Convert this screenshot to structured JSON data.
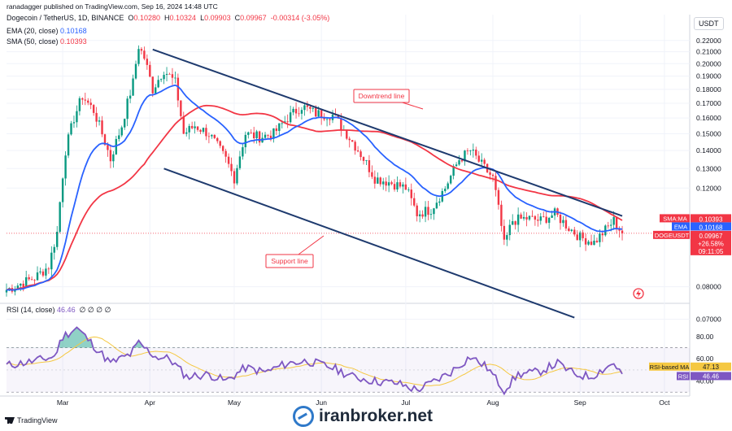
{
  "header": {
    "published": "ranadagger published on TradingView.com, Sep 16, 2024 14:48 UTC",
    "symbol": "Dogecoin / TetherUS, 1D, BINANCE",
    "ohlc": {
      "o_label": "O",
      "o": "0.10280",
      "h_label": "H",
      "h": "0.10324",
      "l_label": "L",
      "l": "0.09903",
      "c_label": "C",
      "c": "0.09967",
      "change": "-0.00314 (-3.05%)"
    },
    "ema_label": "EMA (20, close)",
    "ema_value": "0.10168",
    "sma_label": "SMA (50, close)",
    "sma_value": "0.10393",
    "rsi_label": "RSI (14, close)",
    "rsi_value": "46.46",
    "rsi_extra": "∅ ∅ ∅ ∅"
  },
  "currency": "USDT",
  "footer": {
    "tv_brand": "TradingView",
    "watermark": "iranbroker.net"
  },
  "colors": {
    "up": "#089981",
    "down": "#f23645",
    "ema": "#2962ff",
    "sma": "#f23645",
    "trend": "#1e3a6e",
    "rsi": "#7e57c2",
    "rsi_ma": "#f5c842"
  },
  "chart_data": [
    {
      "type": "candlestick",
      "ylim": [
        0.075,
        0.235
      ],
      "yscale": "log",
      "y_ticks": [
        "0.22000",
        "0.21000",
        "0.20000",
        "0.19000",
        "0.18000",
        "0.17000",
        "0.16000",
        "0.15000",
        "0.14000",
        "0.13000",
        "0.12000",
        "0.08000",
        "0.07000"
      ],
      "x_ticks": [
        "Mar",
        "Apr",
        "May",
        "Jun",
        "Jul",
        "Aug",
        "Sep",
        "Oct"
      ],
      "x_range": [
        "2024-02-10",
        "2024-10-10"
      ],
      "keypoints_close": [
        [
          "2024-02-10",
          0.079
        ],
        [
          "2024-02-20",
          0.083
        ],
        [
          "2024-02-25",
          0.087
        ],
        [
          "2024-02-28",
          0.1
        ],
        [
          "2024-03-02",
          0.14
        ],
        [
          "2024-03-05",
          0.16
        ],
        [
          "2024-03-08",
          0.175
        ],
        [
          "2024-03-12",
          0.165
        ],
        [
          "2024-03-16",
          0.145
        ],
        [
          "2024-03-18",
          0.135
        ],
        [
          "2024-03-22",
          0.155
        ],
        [
          "2024-03-26",
          0.185
        ],
        [
          "2024-03-28",
          0.215
        ],
        [
          "2024-03-30",
          0.205
        ],
        [
          "2024-04-02",
          0.18
        ],
        [
          "2024-04-06",
          0.195
        ],
        [
          "2024-04-10",
          0.185
        ],
        [
          "2024-04-13",
          0.15
        ],
        [
          "2024-04-17",
          0.155
        ],
        [
          "2024-04-22",
          0.15
        ],
        [
          "2024-04-28",
          0.135
        ],
        [
          "2024-05-01",
          0.125
        ],
        [
          "2024-05-05",
          0.15
        ],
        [
          "2024-05-10",
          0.148
        ],
        [
          "2024-05-15",
          0.15
        ],
        [
          "2024-05-20",
          0.16
        ],
        [
          "2024-05-25",
          0.168
        ],
        [
          "2024-05-30",
          0.163
        ],
        [
          "2024-06-05",
          0.162
        ],
        [
          "2024-06-10",
          0.15
        ],
        [
          "2024-06-15",
          0.138
        ],
        [
          "2024-06-20",
          0.125
        ],
        [
          "2024-06-25",
          0.123
        ],
        [
          "2024-07-01",
          0.12
        ],
        [
          "2024-07-05",
          0.108
        ],
        [
          "2024-07-10",
          0.11
        ],
        [
          "2024-07-15",
          0.12
        ],
        [
          "2024-07-20",
          0.135
        ],
        [
          "2024-07-24",
          0.14
        ],
        [
          "2024-07-28",
          0.132
        ],
        [
          "2024-08-01",
          0.125
        ],
        [
          "2024-08-05",
          0.095
        ],
        [
          "2024-08-08",
          0.105
        ],
        [
          "2024-08-13",
          0.106
        ],
        [
          "2024-08-18",
          0.105
        ],
        [
          "2024-08-23",
          0.108
        ],
        [
          "2024-08-28",
          0.102
        ],
        [
          "2024-09-01",
          0.098
        ],
        [
          "2024-09-06",
          0.096
        ],
        [
          "2024-09-10",
          0.101
        ],
        [
          "2024-09-13",
          0.105
        ],
        [
          "2024-09-16",
          0.0997
        ]
      ],
      "ema": {
        "name": "EMA",
        "value": "0.10168"
      },
      "sma": {
        "name": "SMA:MA",
        "value": "0.10393"
      },
      "price_label": {
        "name": "DOGEUSDT",
        "value": "0.09967",
        "change": "+26.58%",
        "countdown": "09:11:05"
      },
      "current_price": 0.09967,
      "trendlines": [
        {
          "label": "Downtrend line",
          "from": [
            "2024-04-02",
            0.212
          ],
          "to": [
            "2024-09-16",
            0.107
          ]
        },
        {
          "label": "Support line",
          "from": [
            "2024-04-06",
            0.13
          ],
          "to": [
            "2024-08-30",
            0.0705
          ]
        }
      ]
    },
    {
      "type": "line",
      "ylim": [
        28,
        96
      ],
      "y_ticks": [
        "80.00",
        "60.00",
        "40.00"
      ],
      "bands": [
        70,
        30
      ],
      "rsi": {
        "name": "RSI",
        "value": "46.46"
      },
      "rsi_ma": {
        "name": "RSI-based MA",
        "value": "47.13"
      },
      "keypoints": [
        [
          "2024-02-10",
          54
        ],
        [
          "2024-02-20",
          58
        ],
        [
          "2024-02-27",
          62
        ],
        [
          "2024-03-01",
          80
        ],
        [
          "2024-03-06",
          88
        ],
        [
          "2024-03-12",
          72
        ],
        [
          "2024-03-18",
          56
        ],
        [
          "2024-03-25",
          64
        ],
        [
          "2024-03-28",
          74
        ],
        [
          "2024-04-03",
          62
        ],
        [
          "2024-04-08",
          60
        ],
        [
          "2024-04-14",
          44
        ],
        [
          "2024-04-22",
          46
        ],
        [
          "2024-04-28",
          40
        ],
        [
          "2024-05-05",
          52
        ],
        [
          "2024-05-12",
          48
        ],
        [
          "2024-05-20",
          56
        ],
        [
          "2024-05-27",
          58
        ],
        [
          "2024-06-05",
          52
        ],
        [
          "2024-06-12",
          44
        ],
        [
          "2024-06-20",
          40
        ],
        [
          "2024-06-28",
          38
        ],
        [
          "2024-07-05",
          32
        ],
        [
          "2024-07-10",
          38
        ],
        [
          "2024-07-17",
          48
        ],
        [
          "2024-07-24",
          62
        ],
        [
          "2024-07-30",
          52
        ],
        [
          "2024-08-05",
          32
        ],
        [
          "2024-08-10",
          46
        ],
        [
          "2024-08-17",
          48
        ],
        [
          "2024-08-24",
          56
        ],
        [
          "2024-08-30",
          46
        ],
        [
          "2024-09-05",
          44
        ],
        [
          "2024-09-10",
          52
        ],
        [
          "2024-09-13",
          56
        ],
        [
          "2024-09-16",
          46.46
        ]
      ]
    }
  ]
}
